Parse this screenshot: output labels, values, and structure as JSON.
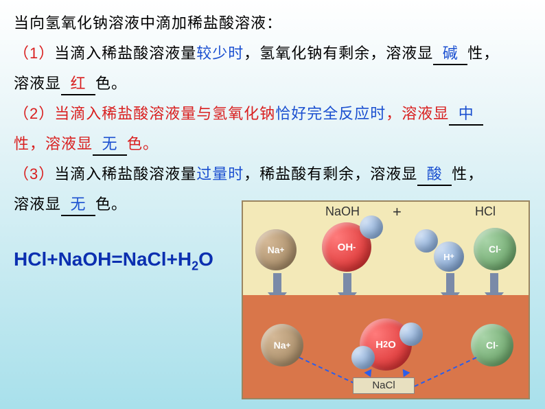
{
  "intro": "当向氢氧化钠溶液中滴加稀盐酸溶液：",
  "p1": {
    "num": "（1）",
    "a": "当滴入稀盐酸溶液量",
    "b": "较少时",
    "c": "，氢氧化钠有剩余，溶液显",
    "ans1": "碱",
    "d": "性，",
    "e": "溶液显",
    "ans2": "红",
    "f": "色。"
  },
  "p2": {
    "num": "（2）",
    "a": "当滴入稀盐酸溶液量与氢氧化钠",
    "b": "恰好完全反应时",
    "c": "，溶液显",
    "ans1": "中",
    "d": "性，溶液显",
    "ans2": "无",
    "e": "色。"
  },
  "p3": {
    "num": "（3）",
    "a": "当滴入稀盐酸溶液量",
    "b": "过量时",
    "c": "，稀盐酸有剩余，溶液显",
    "ans1": "酸",
    "d": "性，",
    "e": "溶液显",
    "ans2": "无",
    "f": "色。"
  },
  "equation": {
    "lhs": "HCl+NaOH=NaCl+H",
    "sub": "2",
    "rhs": "O"
  },
  "diagram": {
    "naoh": "NaOH",
    "plus": "+",
    "hcl": "HCl",
    "na": "Na",
    "na_sup": "+",
    "oh": "OH",
    "oh_sup": "-",
    "h": "H",
    "h_sup": "+",
    "cl": "Cl",
    "cl_sup": "-",
    "h2o": "H",
    "h2o_sub": "2",
    "h2o_after": "O",
    "nacl": "NaCl"
  }
}
